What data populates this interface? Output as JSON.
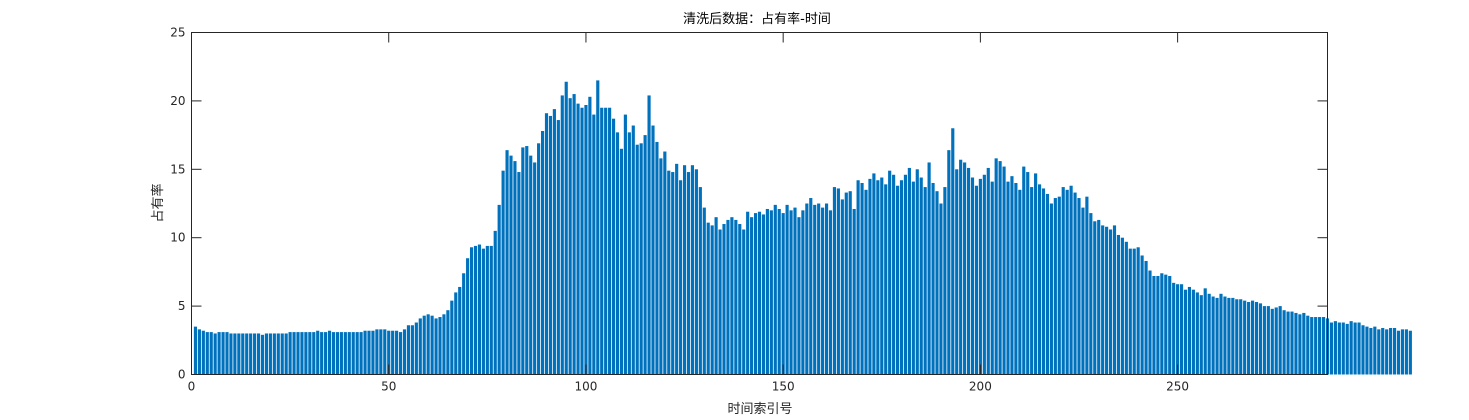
{
  "chart_data": {
    "type": "bar",
    "title": "清洗后数据：占有率-时间",
    "xlabel": "时间索引号",
    "ylabel": "占有率",
    "xlim": [
      0,
      288
    ],
    "ylim": [
      0,
      25
    ],
    "xticks": [
      0,
      50,
      100,
      150,
      200,
      250
    ],
    "yticks": [
      0,
      5,
      10,
      15,
      20,
      25
    ],
    "grid": false,
    "bar_color": "#0072BD",
    "x_start": 1,
    "values": [
      3.5,
      3.3,
      3.2,
      3.1,
      3.1,
      3.0,
      3.1,
      3.1,
      3.1,
      3.0,
      3.0,
      3.0,
      3.0,
      3.0,
      3.0,
      3.0,
      3.0,
      2.9,
      3.0,
      3.0,
      3.0,
      3.0,
      3.0,
      3.0,
      3.1,
      3.1,
      3.1,
      3.1,
      3.1,
      3.1,
      3.1,
      3.2,
      3.1,
      3.1,
      3.2,
      3.1,
      3.1,
      3.1,
      3.1,
      3.1,
      3.1,
      3.1,
      3.1,
      3.2,
      3.2,
      3.2,
      3.3,
      3.3,
      3.3,
      3.2,
      3.2,
      3.2,
      3.1,
      3.3,
      3.6,
      3.6,
      3.8,
      4.1,
      4.3,
      4.4,
      4.3,
      4.1,
      4.2,
      4.4,
      4.7,
      5.4,
      6.0,
      6.4,
      7.4,
      8.5,
      9.3,
      9.4,
      9.5,
      9.2,
      9.4,
      9.4,
      10.5,
      12.4,
      14.9,
      16.4,
      16.0,
      15.6,
      14.8,
      16.6,
      16.7,
      16.0,
      15.5,
      16.9,
      17.8,
      19.1,
      18.9,
      19.4,
      18.6,
      20.4,
      21.4,
      20.2,
      20.5,
      19.8,
      19.5,
      19.7,
      20.3,
      19.0,
      21.5,
      19.5,
      19.5,
      19.5,
      18.7,
      17.7,
      16.5,
      19.0,
      17.7,
      18.2,
      16.8,
      16.9,
      17.5,
      20.4,
      18.2,
      17.0,
      15.8,
      16.3,
      14.9,
      14.8,
      15.4,
      14.2,
      15.3,
      14.8,
      15.3,
      15.0,
      13.7,
      12.2,
      11.1,
      10.9,
      11.5,
      10.6,
      11.0,
      11.3,
      11.5,
      11.3,
      11.0,
      10.6,
      11.9,
      11.5,
      11.8,
      11.9,
      11.7,
      12.1,
      12.0,
      12.4,
      12.1,
      11.8,
      12.4,
      12.0,
      12.2,
      11.5,
      12.0,
      12.5,
      12.9,
      12.4,
      12.5,
      12.2,
      12.5,
      12.0,
      13.7,
      13.6,
      12.8,
      13.3,
      13.4,
      12.1,
      14.2,
      14.0,
      13.5,
      14.3,
      14.7,
      14.2,
      14.4,
      13.9,
      14.9,
      14.6,
      13.8,
      14.2,
      14.6,
      15.1,
      14.1,
      15.0,
      14.4,
      13.7,
      15.5,
      14.0,
      13.4,
      12.5,
      13.7,
      16.4,
      18.0,
      15.0,
      15.7,
      15.5,
      15.1,
      14.4,
      13.8,
      14.3,
      14.6,
      15.1,
      14.1,
      15.8,
      15.6,
      15.2,
      14.1,
      14.5,
      14.0,
      13.5,
      15.2,
      14.8,
      13.7,
      14.7,
      13.9,
      13.6,
      13.2,
      12.5,
      12.9,
      13.0,
      13.7,
      13.5,
      13.8,
      13.3,
      12.9,
      12.2,
      13.0,
      11.8,
      11.2,
      11.3,
      10.9,
      10.8,
      10.6,
      10.9,
      10.2,
      10.0,
      9.7,
      9.2,
      9.2,
      9.3,
      8.7,
      8.3,
      7.6,
      7.2,
      7.2,
      7.4,
      7.3,
      7.2,
      6.7,
      6.6,
      6.6,
      6.2,
      6.4,
      6.2,
      6.0,
      5.8,
      6.3,
      5.9,
      5.7,
      5.6,
      5.9,
      5.7,
      5.6,
      5.6,
      5.5,
      5.5,
      5.4,
      5.3,
      5.4,
      5.3,
      5.2,
      5.0,
      5.0,
      4.8,
      4.9,
      5.0,
      4.7,
      4.6,
      4.6,
      4.5,
      4.4,
      4.5,
      4.3,
      4.2,
      4.2,
      4.2,
      4.2,
      4.1,
      3.8,
      3.9,
      3.8,
      3.8,
      3.7,
      3.9,
      3.8,
      3.8,
      3.6,
      3.5,
      3.4,
      3.5,
      3.3,
      3.4,
      3.3,
      3.4,
      3.4,
      3.2,
      3.3,
      3.3,
      3.2
    ]
  }
}
